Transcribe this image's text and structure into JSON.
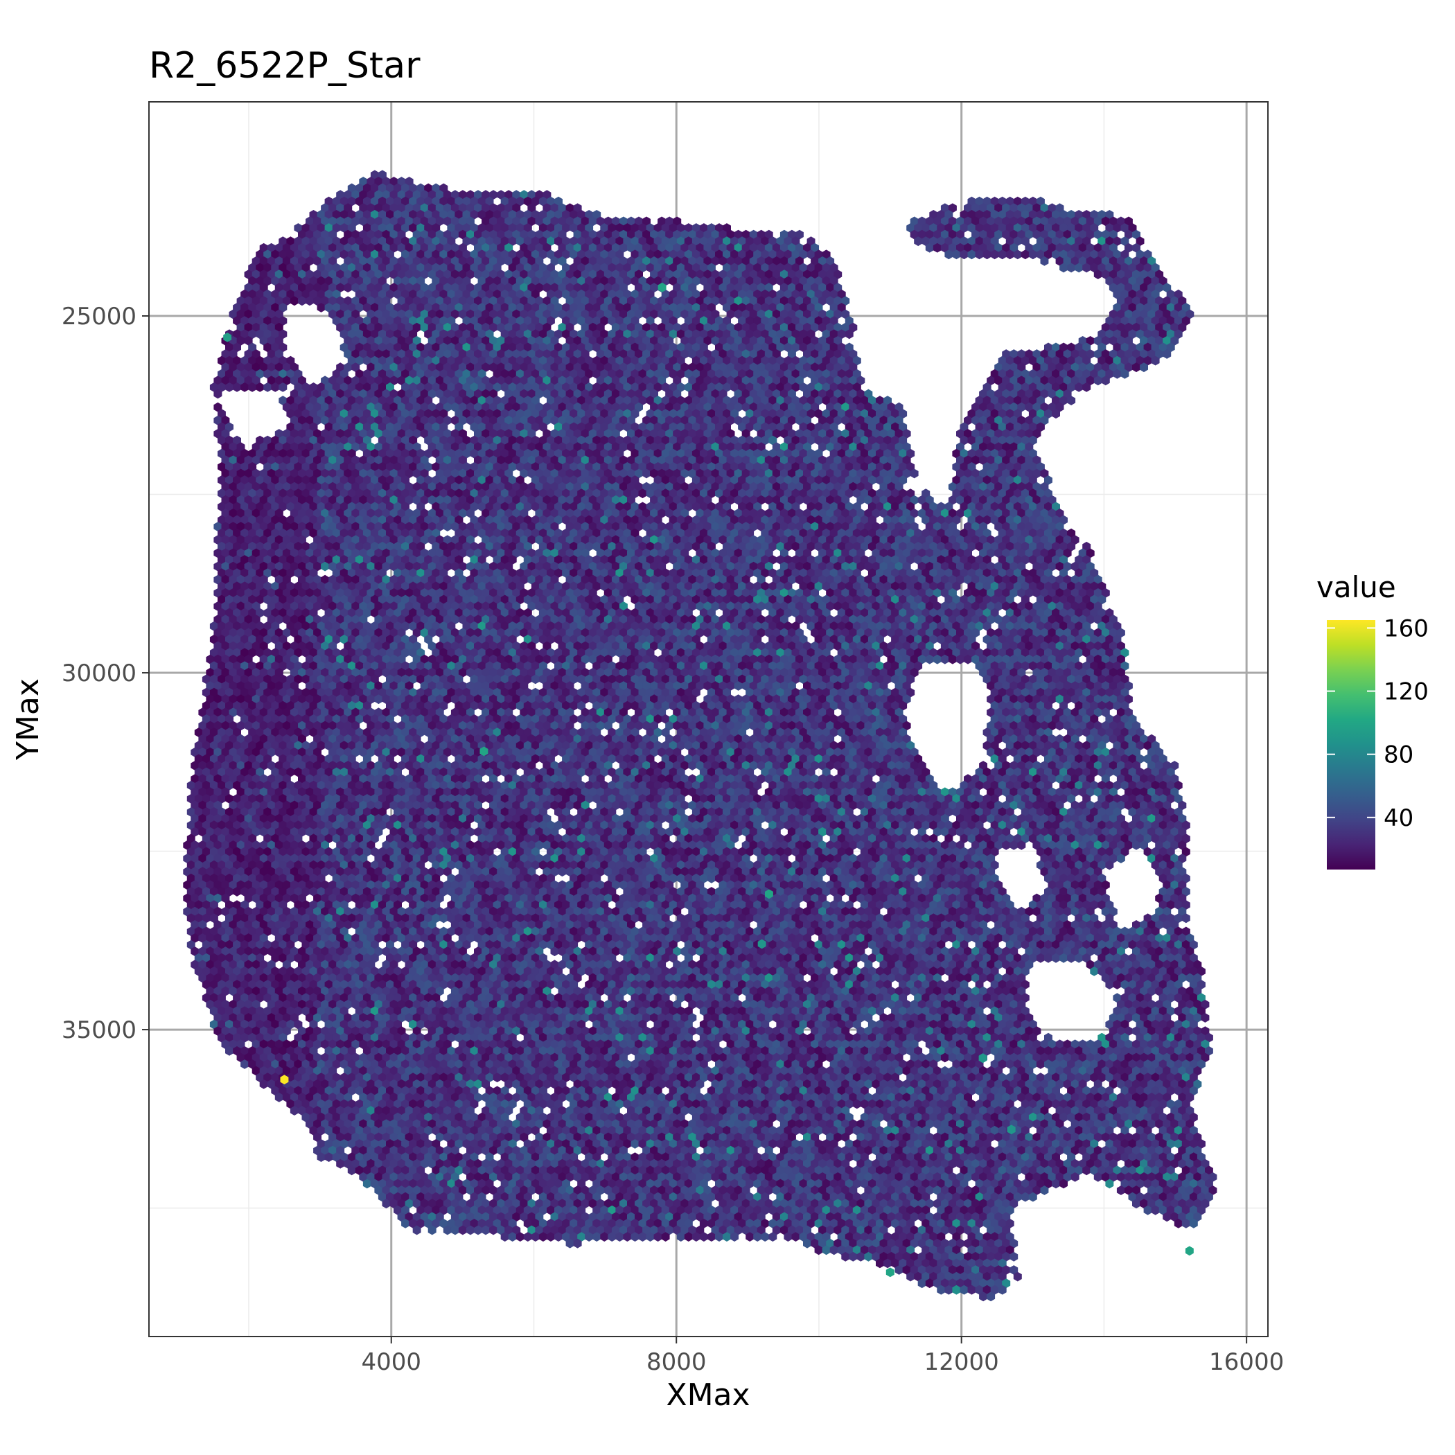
{
  "chart_data": {
    "type": "hexbin",
    "title": "R2_6522P_Star",
    "xlabel": "XMax",
    "ylabel": "YMax",
    "y_reversed": true,
    "xlim": [
      600,
      16300
    ],
    "ylim": [
      22000,
      39300
    ],
    "x_ticks": [
      4000,
      8000,
      12000,
      16000
    ],
    "x_tick_labels": [
      "4000",
      "8000",
      "12000",
      "16000"
    ],
    "y_ticks": [
      25000,
      30000,
      35000
    ],
    "y_tick_labels": [
      "25000",
      "30000",
      "35000"
    ],
    "x_minor_ticks": [
      2000,
      6000,
      10000,
      14000
    ],
    "y_minor_ticks": [
      27500,
      32500,
      37500
    ],
    "grid": true,
    "theme": "bw",
    "colormap": "viridis",
    "color_range": [
      7,
      165
    ],
    "legend": {
      "title": "value",
      "placement": "right",
      "breaks": [
        40,
        80,
        120,
        160
      ],
      "labels": [
        "40",
        "80",
        "120",
        "160"
      ]
    },
    "hex_radius_data": 62,
    "typical_value_range": [
      10,
      50
    ],
    "tissue_outline": [
      [
        3200,
        23300
      ],
      [
        3800,
        23000
      ],
      [
        4600,
        23200
      ],
      [
        6200,
        23300
      ],
      [
        7000,
        23600
      ],
      [
        8400,
        23700
      ],
      [
        9000,
        23800
      ],
      [
        9700,
        23800
      ],
      [
        10200,
        24200
      ],
      [
        10500,
        25200
      ],
      [
        10600,
        26000
      ],
      [
        11200,
        26300
      ],
      [
        11400,
        27400
      ],
      [
        11800,
        27700
      ],
      [
        12000,
        26500
      ],
      [
        12600,
        25500
      ],
      [
        13500,
        25400
      ],
      [
        14000,
        25200
      ],
      [
        14200,
        24800
      ],
      [
        14000,
        24500
      ],
      [
        13000,
        24200
      ],
      [
        12000,
        24200
      ],
      [
        11400,
        24000
      ],
      [
        11200,
        23700
      ],
      [
        12000,
        23400
      ],
      [
        12800,
        23300
      ],
      [
        13500,
        23500
      ],
      [
        14300,
        23600
      ],
      [
        14900,
        24500
      ],
      [
        15300,
        25000
      ],
      [
        14900,
        25600
      ],
      [
        13800,
        26000
      ],
      [
        13000,
        26700
      ],
      [
        13300,
        27500
      ],
      [
        13800,
        28300
      ],
      [
        14300,
        29600
      ],
      [
        14400,
        30600
      ],
      [
        15000,
        31300
      ],
      [
        15200,
        32200
      ],
      [
        15200,
        33600
      ],
      [
        15400,
        34300
      ],
      [
        15500,
        35400
      ],
      [
        15200,
        36000
      ],
      [
        15600,
        37300
      ],
      [
        15200,
        37800
      ],
      [
        14500,
        37500
      ],
      [
        13800,
        37000
      ],
      [
        12700,
        37500
      ],
      [
        12800,
        38500
      ],
      [
        12400,
        38800
      ],
      [
        11500,
        38600
      ],
      [
        11100,
        38400
      ],
      [
        10900,
        38300
      ],
      [
        10000,
        38100
      ],
      [
        9500,
        37900
      ],
      [
        6500,
        38000
      ],
      [
        5500,
        37900
      ],
      [
        4200,
        37800
      ],
      [
        3900,
        37400
      ],
      [
        3500,
        37000
      ],
      [
        3000,
        36800
      ],
      [
        2800,
        36300
      ],
      [
        2000,
        35600
      ],
      [
        1600,
        35200
      ],
      [
        1200,
        34000
      ],
      [
        1100,
        33000
      ],
      [
        1200,
        31300
      ],
      [
        1500,
        29500
      ],
      [
        1600,
        27000
      ],
      [
        1500,
        26000
      ],
      [
        1800,
        24800
      ],
      [
        2200,
        24000
      ],
      [
        2600,
        23800
      ]
    ],
    "holes": [
      [
        [
          11400,
          29900
        ],
        [
          12200,
          29900
        ],
        [
          12400,
          30300
        ],
        [
          12300,
          31300
        ],
        [
          11800,
          31700
        ],
        [
          11400,
          31200
        ],
        [
          11200,
          30600
        ]
      ],
      [
        [
          12900,
          34100
        ],
        [
          13600,
          34000
        ],
        [
          14200,
          34500
        ],
        [
          14000,
          35100
        ],
        [
          13300,
          35200
        ],
        [
          12900,
          34700
        ]
      ],
      [
        [
          14000,
          32800
        ],
        [
          14500,
          32400
        ],
        [
          14800,
          32900
        ],
        [
          14700,
          33400
        ],
        [
          14200,
          33600
        ]
      ],
      [
        [
          1500,
          26100
        ],
        [
          2400,
          26000
        ],
        [
          2600,
          26600
        ],
        [
          1900,
          26800
        ]
      ],
      [
        [
          2500,
          24800
        ],
        [
          3100,
          24900
        ],
        [
          3400,
          25600
        ],
        [
          2900,
          26000
        ],
        [
          2500,
          25500
        ]
      ],
      [
        [
          12500,
          32500
        ],
        [
          13000,
          32400
        ],
        [
          13200,
          33000
        ],
        [
          12800,
          33300
        ],
        [
          12500,
          32900
        ]
      ]
    ],
    "notable_points": [
      {
        "x": 2500,
        "y": 35700,
        "value": 165
      },
      {
        "x": 5300,
        "y": 31100,
        "value": 100
      },
      {
        "x": 7800,
        "y": 24600,
        "value": 100
      },
      {
        "x": 9300,
        "y": 33100,
        "value": 100
      },
      {
        "x": 15200,
        "y": 38100,
        "value": 100
      },
      {
        "x": 11000,
        "y": 38400,
        "value": 100
      },
      {
        "x": 1700,
        "y": 25300,
        "value": 95
      },
      {
        "x": 12300,
        "y": 35400,
        "value": 90
      },
      {
        "x": 12700,
        "y": 36400,
        "value": 90
      },
      {
        "x": 9200,
        "y": 33800,
        "value": 90
      }
    ]
  }
}
